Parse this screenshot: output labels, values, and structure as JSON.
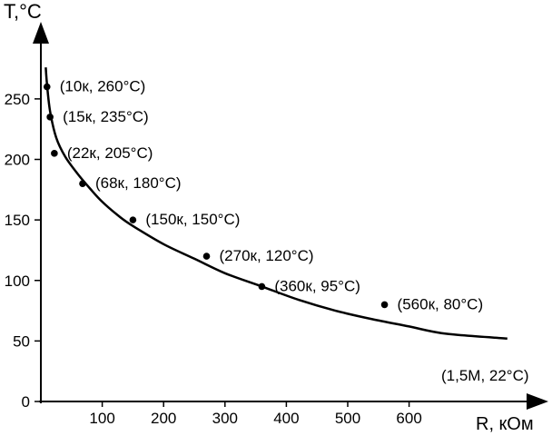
{
  "chart_data": {
    "type": "scatter",
    "title": "",
    "ylabel": "T,°C",
    "xlabel": "R, кОм",
    "xlim": [
      0,
      680
    ],
    "ylim": [
      0,
      270
    ],
    "x_ticks": [
      100,
      200,
      300,
      400,
      500,
      600
    ],
    "y_ticks": [
      0,
      50,
      100,
      150,
      200,
      250
    ],
    "grid": false,
    "legend": "none",
    "series": [
      {
        "points": [
          {
            "x": 10,
            "y": 260,
            "label": "(10к, 260°С)"
          },
          {
            "x": 15,
            "y": 235,
            "label": "(15к, 235°С)"
          },
          {
            "x": 22,
            "y": 205,
            "label": "(22к, 205°С)"
          },
          {
            "x": 68,
            "y": 180,
            "label": "(68к, 180°С)"
          },
          {
            "x": 150,
            "y": 150,
            "label": "(150к, 150°С)"
          },
          {
            "x": 270,
            "y": 120,
            "label": "(270к, 120°С)"
          },
          {
            "x": 360,
            "y": 95,
            "label": "(360к, 95°С)"
          },
          {
            "x": 560,
            "y": 80,
            "label": "(560к, 80°С)"
          }
        ]
      }
    ],
    "trend_curve": [
      {
        "x": 8,
        "y": 276
      },
      {
        "x": 10,
        "y": 262
      },
      {
        "x": 15,
        "y": 240
      },
      {
        "x": 25,
        "y": 218
      },
      {
        "x": 40,
        "y": 202
      },
      {
        "x": 60,
        "y": 188
      },
      {
        "x": 80,
        "y": 176
      },
      {
        "x": 100,
        "y": 165
      },
      {
        "x": 130,
        "y": 152
      },
      {
        "x": 150,
        "y": 145
      },
      {
        "x": 200,
        "y": 130
      },
      {
        "x": 250,
        "y": 118
      },
      {
        "x": 300,
        "y": 106
      },
      {
        "x": 360,
        "y": 95
      },
      {
        "x": 420,
        "y": 84
      },
      {
        "x": 480,
        "y": 75
      },
      {
        "x": 540,
        "y": 68
      },
      {
        "x": 600,
        "y": 62
      },
      {
        "x": 660,
        "y": 56
      },
      {
        "x": 760,
        "y": 52
      }
    ],
    "annotations": [
      {
        "text": "(1,5М, 22°С)"
      }
    ],
    "colors": {
      "line": "#000000",
      "point": "#000000",
      "background": "#ffffff"
    }
  }
}
